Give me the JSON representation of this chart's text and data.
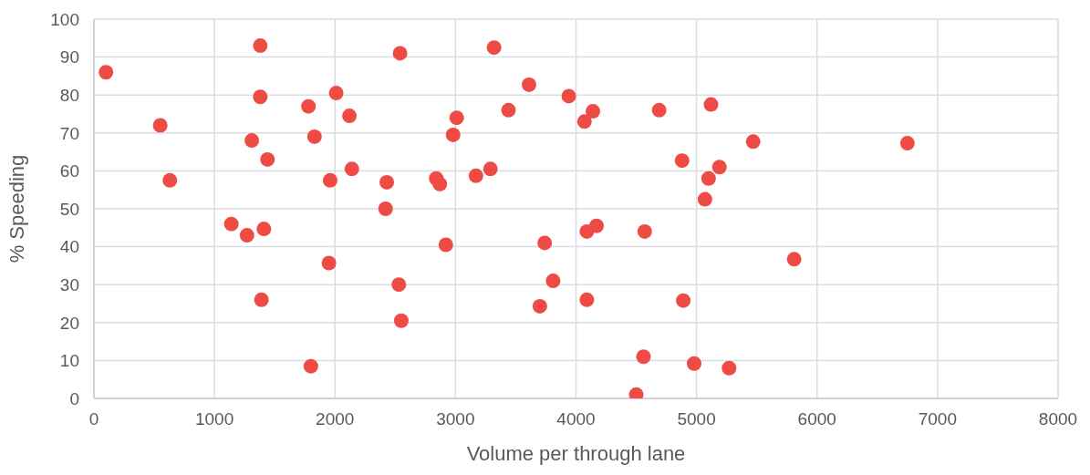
{
  "chart_data": {
    "type": "scatter",
    "xlabel": "Volume per through lane",
    "ylabel": "% Speeding",
    "x": [
      100,
      550,
      630,
      1140,
      1270,
      1310,
      1380,
      1380,
      1390,
      1410,
      1440,
      1780,
      1800,
      1830,
      1950,
      1960,
      2010,
      2120,
      2140,
      2420,
      2430,
      2530,
      2540,
      2550,
      2840,
      2870,
      2920,
      2980,
      3010,
      3170,
      3290,
      3320,
      3440,
      3610,
      3700,
      3740,
      3810,
      3940,
      4070,
      4090,
      4090,
      4140,
      4170,
      4500,
      4560,
      4570,
      4690,
      4880,
      4890,
      4980,
      5070,
      5100,
      5120,
      5190,
      5270,
      5470,
      5810,
      6750
    ],
    "values": [
      86,
      72,
      57.5,
      46,
      43,
      68,
      93,
      79.5,
      26,
      44.7,
      63,
      77,
      8.5,
      69,
      35.7,
      57.5,
      80.5,
      74.5,
      60.5,
      50,
      57,
      30,
      91,
      20.5,
      58,
      56.5,
      40.5,
      69.5,
      74,
      58.7,
      60.5,
      92.5,
      76,
      82.7,
      24.3,
      41,
      31,
      79.7,
      73,
      44,
      26,
      75.7,
      45.5,
      1,
      11,
      44,
      76,
      62.7,
      25.8,
      9.2,
      52.5,
      58,
      77.5,
      61,
      8,
      67.7,
      36.7,
      67.3
    ],
    "color": "#ef4b45",
    "marker": "circle",
    "xlim": [
      0,
      8000
    ],
    "xticks": [
      0,
      1000,
      2000,
      3000,
      4000,
      5000,
      6000,
      7000,
      8000
    ],
    "ylim": [
      0,
      100
    ],
    "yticks": [
      0,
      10,
      20,
      30,
      40,
      50,
      60,
      70,
      80,
      90,
      100
    ],
    "grid": true
  }
}
